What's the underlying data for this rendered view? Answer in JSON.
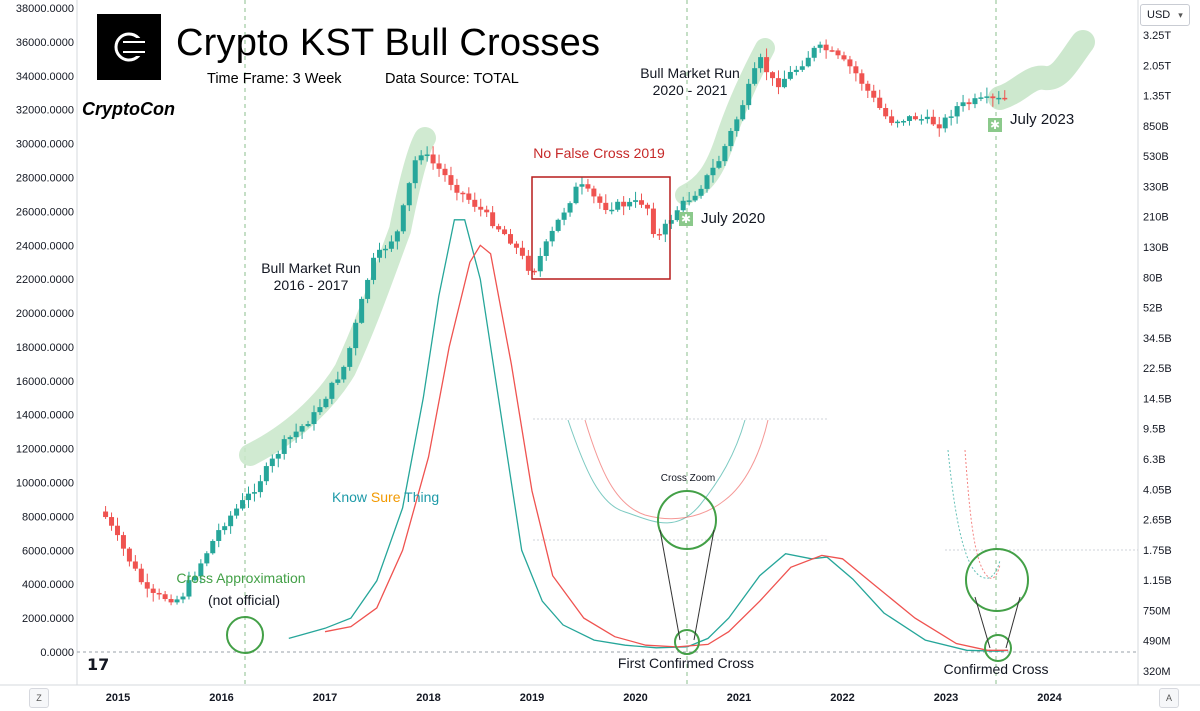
{
  "header": {
    "title": "Crypto KST Bull Crosses",
    "timeframe": "Time Frame: 3 Week",
    "source": "Data Source: TOTAL",
    "brand": "CryptoCon"
  },
  "toolbar": {
    "currency": "USD",
    "zone_button": "Z",
    "auto_button": "A"
  },
  "annotations": {
    "bull_run_1": [
      "Bull Market Run",
      "2016 - 2017"
    ],
    "bull_run_2": [
      "Bull Market Run",
      "2020 - 2021"
    ],
    "no_false_cross": "No False Cross 2019",
    "july_2020": "July 2020",
    "july_2023": "July 2023",
    "kst_label": [
      "Know",
      "Sure",
      "Thing"
    ],
    "cross_zoom": "Cross Zoom",
    "cross_approx": "Cross Approximation",
    "not_official": "(not official)",
    "first_confirmed": "First Confirmed Cross",
    "confirmed": "Confirmed Cross"
  },
  "colors": {
    "up": "#26a69a",
    "down": "#ef5350",
    "bull_highlight": "#c8e6c9",
    "kst_line": "#26a69a",
    "signal_line": "#ef5350",
    "box": "#b71c1c",
    "circle": "#43a047",
    "kst_sure": "#f29900",
    "cross_approx_text": "#43a047",
    "no_false_text": "#c62828"
  },
  "chart_data": {
    "type": "candlestick",
    "title": "Crypto KST Bull Crosses",
    "x_axis_labels": [
      "2015",
      "2016",
      "2017",
      "2018",
      "2019",
      "2020",
      "2021",
      "2022",
      "2023",
      "2024"
    ],
    "left_axis_labels": [
      "38000.0000",
      "36000.0000",
      "34000.0000",
      "32000.0000",
      "30000.0000",
      "28000.0000",
      "26000.0000",
      "24000.0000",
      "22000.0000",
      "20000.0000",
      "18000.0000",
      "16000.0000",
      "14000.0000",
      "12000.0000",
      "10000.0000",
      "8000.0000",
      "6000.0000",
      "4000.0000",
      "2000.0000",
      "0.0000"
    ],
    "right_axis_labels": [
      "3.25T",
      "2.05T",
      "1.35T",
      "850B",
      "530B",
      "330B",
      "210B",
      "130B",
      "80B",
      "52B",
      "34.5B",
      "22.5B",
      "14.5B",
      "9.5B",
      "6.3B",
      "4.05B",
      "2.65B",
      "1.75B",
      "1.15B",
      "750M",
      "490M",
      "320M"
    ],
    "price_series": {
      "name": "TOTAL",
      "dates": [
        2014.85,
        2015.3,
        2015.6,
        2016.0,
        2016.3,
        2016.6,
        2016.9,
        2017.2,
        2017.45,
        2017.7,
        2017.9,
        2018.1,
        2018.25,
        2018.5,
        2018.8,
        2019.0,
        2019.25,
        2019.45,
        2019.7,
        2019.9,
        2020.1,
        2020.2,
        2020.4,
        2020.6,
        2020.8,
        2021.0,
        2021.2,
        2021.35,
        2021.55,
        2021.75,
        2021.85,
        2022.1,
        2022.35,
        2022.45,
        2022.7,
        2022.95,
        2023.1,
        2023.3,
        2023.55
      ],
      "values": [
        3200000000.0,
        950000000.0,
        900000000.0,
        2600000000.0,
        4300000000.0,
        8500000000.0,
        13000000000.0,
        27000000000.0,
        115000000000.0,
        180000000000.0,
        600000000000.0,
        450000000000.0,
        350000000000.0,
        250000000000.0,
        160000000000.0,
        100000000000.0,
        210000000000.0,
        360000000000.0,
        260000000000.0,
        270000000000.0,
        280000000000.0,
        160000000000.0,
        250000000000.0,
        330000000000.0,
        500000000000.0,
        1000000000000.0,
        2200000000000.0,
        1500000000000.0,
        1900000000000.0,
        2600000000000.0,
        2500000000000.0,
        1900000000000.0,
        1100000000000.0,
        900000000000.0,
        950000000000.0,
        850000000000.0,
        1100000000000.0,
        1200000000000.0,
        1220000000000.0
      ]
    },
    "kst": {
      "name": "Know Sure Thing",
      "x": [
        2016.65,
        2017.0,
        2017.25,
        2017.5,
        2017.75,
        2017.95,
        2018.1,
        2018.25,
        2018.35,
        2018.5,
        2018.7,
        2018.9,
        2019.1,
        2019.3,
        2019.6,
        2019.9,
        2020.2,
        2020.5,
        2020.7,
        2020.9,
        2021.2,
        2021.45,
        2021.7,
        2021.85,
        2022.1,
        2022.4,
        2022.8,
        2023.2,
        2023.5,
        2023.6
      ],
      "values": [
        800,
        1400,
        2000,
        4200,
        8500,
        15000,
        21000,
        25500,
        25500,
        22000,
        14000,
        6000,
        3000,
        1600,
        700,
        400,
        250,
        300,
        800,
        2000,
        4500,
        5800,
        5500,
        5600,
        4300,
        2300,
        700,
        100,
        50,
        100
      ]
    },
    "signal": {
      "name": "Signal",
      "x": [
        2017.0,
        2017.25,
        2017.5,
        2017.75,
        2018.0,
        2018.2,
        2018.4,
        2018.5,
        2018.6,
        2018.8,
        2019.0,
        2019.2,
        2019.5,
        2019.8,
        2020.1,
        2020.4,
        2020.7,
        2020.9,
        2021.2,
        2021.5,
        2021.8,
        2022.0,
        2022.3,
        2022.7,
        2023.1,
        2023.4,
        2023.6
      ],
      "values": [
        1200,
        1500,
        2600,
        6000,
        11500,
        18000,
        23000,
        24000,
        23500,
        17000,
        9500,
        4500,
        2000,
        900,
        400,
        300,
        450,
        1200,
        3000,
        5000,
        5700,
        5500,
        4000,
        2000,
        500,
        100,
        100
      ]
    },
    "ylim_left": [
      0,
      38000
    ],
    "y_scale_right": "log",
    "grid": false
  }
}
